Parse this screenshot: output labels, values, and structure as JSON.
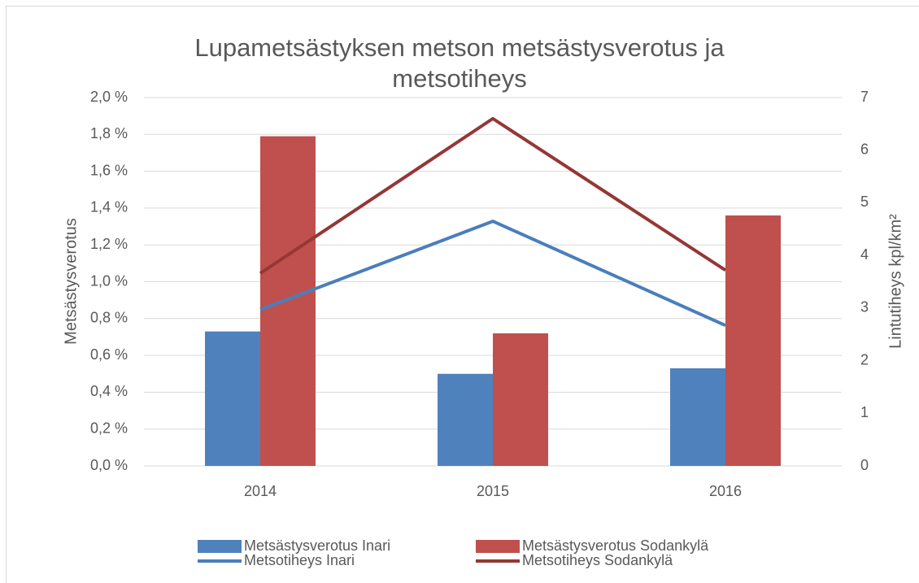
{
  "chart_data": {
    "type": "bar-line",
    "title": "Lupametsästyksen metson metsästysverotus  ja metsotiheys",
    "y_label": "Metsästysverotus",
    "y2_label": "Lintutiheys kpl/km²",
    "categories": [
      "2014",
      "2015",
      "2016"
    ],
    "series": [
      {
        "name": "Metsästysverotus Inari",
        "type": "bar",
        "color": "#4f81bd",
        "values": [
          0.73,
          0.5,
          0.53
        ]
      },
      {
        "name": "Metsästysverotus Sodankylä",
        "type": "bar",
        "color": "#c0504d",
        "values": [
          1.79,
          0.72,
          1.36
        ]
      },
      {
        "name": "Metsotiheys Inari",
        "type": "line",
        "axis": "y2",
        "color": "#4a7ebb",
        "values": [
          2.97,
          4.65,
          2.67
        ]
      },
      {
        "name": "Metsotiheys Sodankylä",
        "type": "line",
        "axis": "y2",
        "color": "#953735",
        "values": [
          3.66,
          6.6,
          3.72
        ]
      }
    ],
    "ylim": [
      0,
      2
    ],
    "yticks": [
      {
        "value": 0,
        "label": "0,0 %"
      },
      {
        "value": 0.2,
        "label": "0,2 %"
      },
      {
        "value": 0.4,
        "label": "0,4 %"
      },
      {
        "value": 0.6,
        "label": "0,6 %"
      },
      {
        "value": 0.8,
        "label": "0,8 %"
      },
      {
        "value": 1,
        "label": "1,0 %"
      },
      {
        "value": 1.2,
        "label": "1,2 %"
      },
      {
        "value": 1.4,
        "label": "1,4 %"
      },
      {
        "value": 1.6,
        "label": "1,6 %"
      },
      {
        "value": 1.8,
        "label": "1,8 %"
      },
      {
        "value": 2,
        "label": "2,0 %"
      }
    ],
    "y2lim": [
      0,
      7
    ],
    "y2ticks": [
      0,
      1,
      2,
      3,
      4,
      5,
      6,
      7
    ],
    "grid": true
  }
}
